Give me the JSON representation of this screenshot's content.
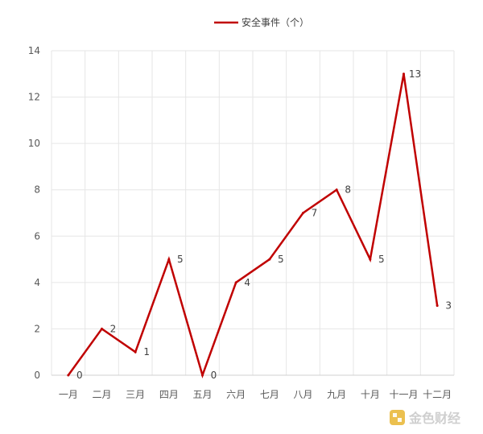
{
  "chart_data": {
    "type": "line",
    "title": "",
    "xlabel": "",
    "ylabel": "",
    "categories": [
      "一月",
      "二月",
      "三月",
      "四月",
      "五月",
      "六月",
      "七月",
      "八月",
      "九月",
      "十月",
      "十一月",
      "十二月"
    ],
    "series": [
      {
        "name": "安全事件（个）",
        "color": "#c00000",
        "values": [
          0,
          2,
          1,
          5,
          0,
          4,
          5,
          7,
          8,
          5,
          13,
          3
        ]
      }
    ],
    "ylim": [
      0,
      14
    ],
    "yticks": [
      0,
      2,
      4,
      6,
      8,
      10,
      12,
      14
    ],
    "grid": true,
    "legend_position": "top-center",
    "data_labels": true
  },
  "watermark": {
    "text": "金色财经",
    "icon": "logo-icon",
    "color": "#e0a000"
  }
}
